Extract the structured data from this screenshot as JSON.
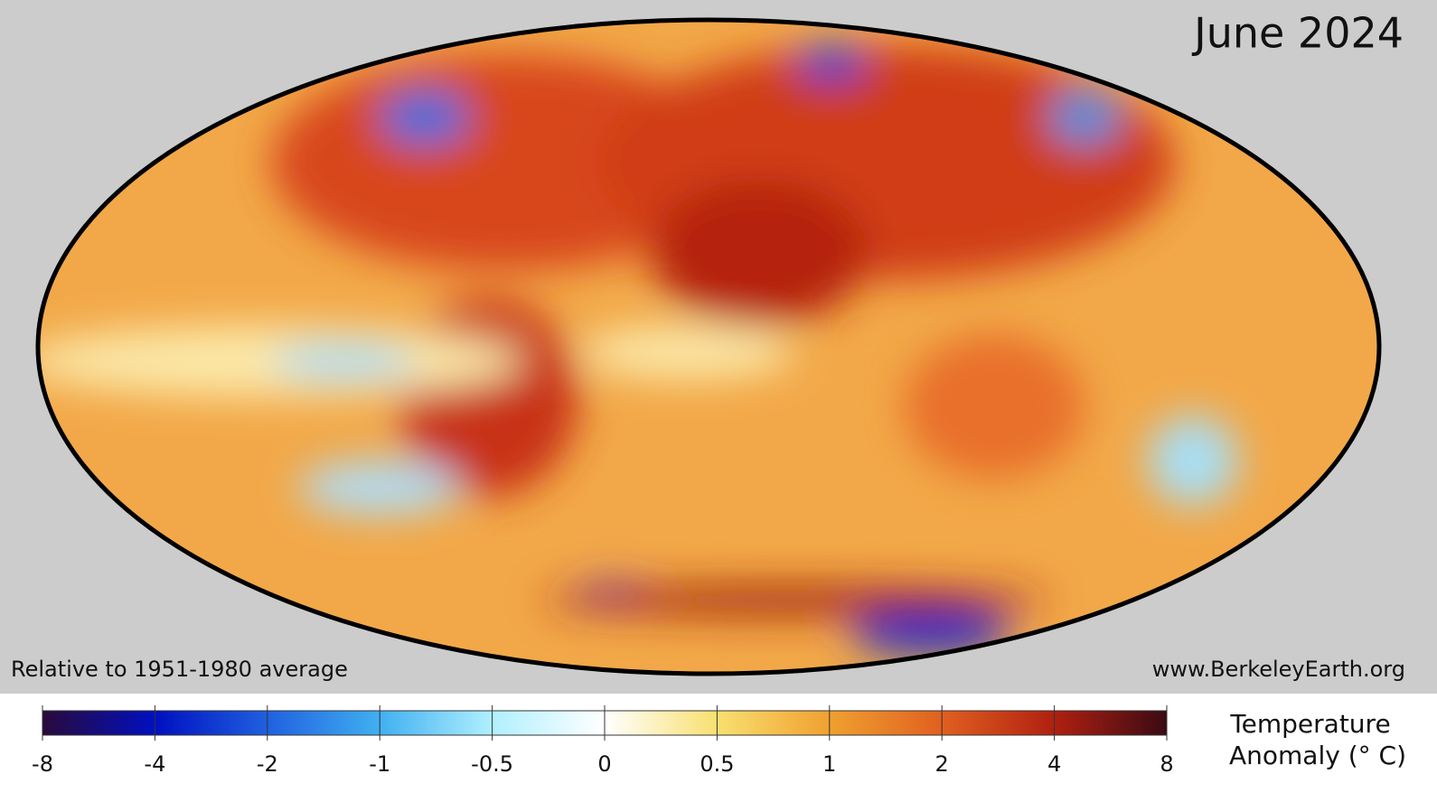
{
  "map": {
    "title": "June 2024",
    "note": "Relative to 1951-1980 average",
    "source": "www.BerkeleyEarth.org"
  },
  "colorbar": {
    "label": [
      "Temperature",
      "Anomaly (° C)"
    ],
    "ticks": [
      -8,
      -4,
      -2,
      -1,
      -0.5,
      0,
      0.5,
      1,
      2,
      4,
      8
    ]
  }
}
